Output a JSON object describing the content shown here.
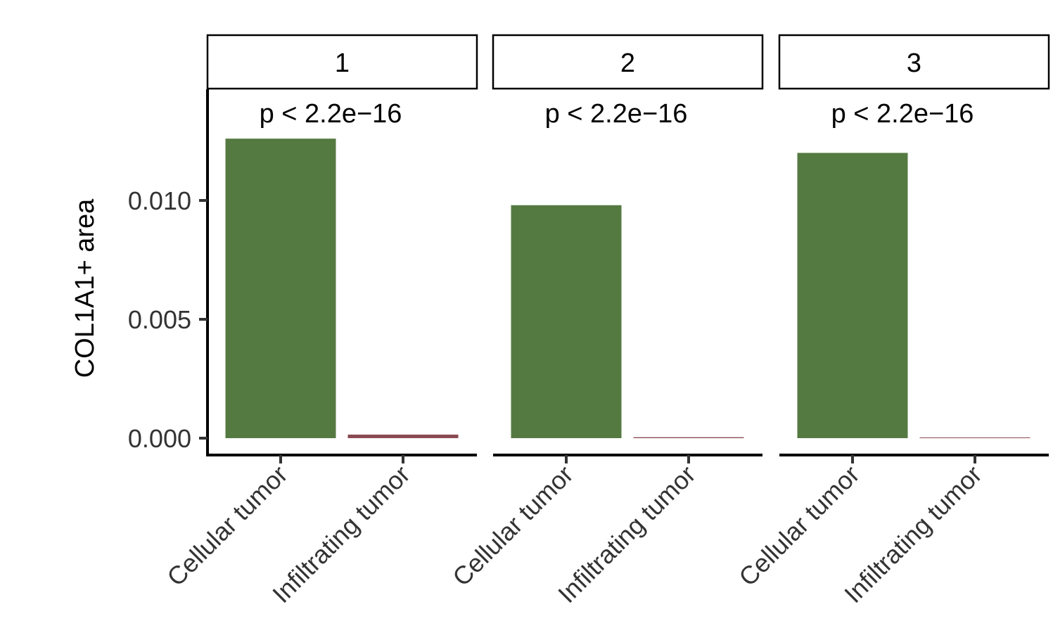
{
  "chart_data": {
    "type": "bar",
    "ylabel": "COL1A1+ area",
    "xlabel": "",
    "ylim": [
      0,
      0.0125
    ],
    "yticks": [
      0.0,
      0.005,
      0.01
    ],
    "ytick_labels": [
      "0.000",
      "0.005",
      "0.010"
    ],
    "categories": [
      "Cellular tumor",
      "Infiltrating tumor"
    ],
    "bar_colors": [
      "#557a41",
      "#8b4a52"
    ],
    "grid": false,
    "facets": [
      {
        "label": "1",
        "annotation": "p < 2.2e−16",
        "values": [
          0.0126,
          0.00015
        ]
      },
      {
        "label": "2",
        "annotation": "p < 2.2e−16",
        "values": [
          0.0098,
          4e-05
        ]
      },
      {
        "label": "3",
        "annotation": "p < 2.2e−16",
        "values": [
          0.012,
          2e-05
        ]
      }
    ]
  }
}
